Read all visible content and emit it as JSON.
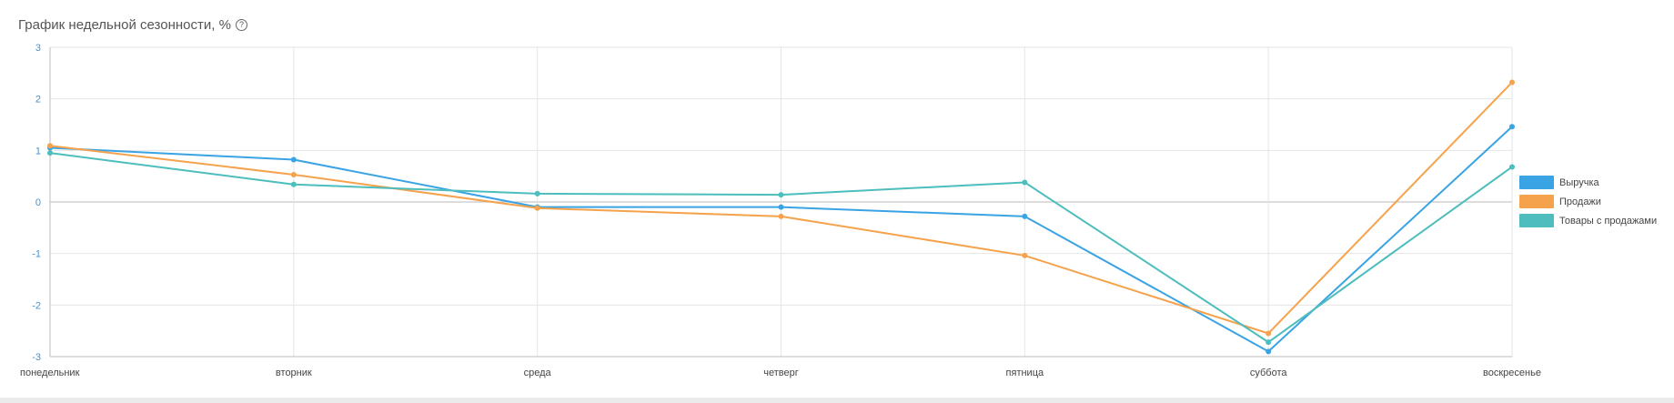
{
  "header": {
    "title": "График недельной сезонности, %",
    "help_icon": "question-circle-icon"
  },
  "colors": {
    "revenue": "#3aa3e3",
    "sales": "#f5a24c",
    "goods": "#4dbdbd",
    "grid": "#e5e5e5",
    "axis": "#bdbdbd",
    "ytick": "#4a90c8"
  },
  "chart_data": {
    "type": "line",
    "title": "График недельной сезонности, %",
    "xlabel": "",
    "ylabel": "",
    "categories": [
      "понедельник",
      "вторник",
      "среда",
      "четверг",
      "пятница",
      "суббота",
      "воскресенье"
    ],
    "ylim": [
      -3,
      3
    ],
    "yticks": [
      3,
      2,
      1,
      0,
      -1,
      -2,
      -3
    ],
    "grid": true,
    "legend_position": "right",
    "series": [
      {
        "name": "Выручка",
        "color": "#3aa3e3",
        "values": [
          1.05,
          0.82,
          -0.1,
          -0.1,
          -0.28,
          -2.9,
          1.46
        ]
      },
      {
        "name": "Продажи",
        "color": "#f5a24c",
        "values": [
          1.09,
          0.53,
          -0.12,
          -0.28,
          -1.04,
          -2.55,
          2.32
        ]
      },
      {
        "name": "Товары с продажами",
        "color": "#4dbdbd",
        "values": [
          0.95,
          0.34,
          0.16,
          0.14,
          0.38,
          -2.72,
          0.68
        ]
      }
    ]
  }
}
